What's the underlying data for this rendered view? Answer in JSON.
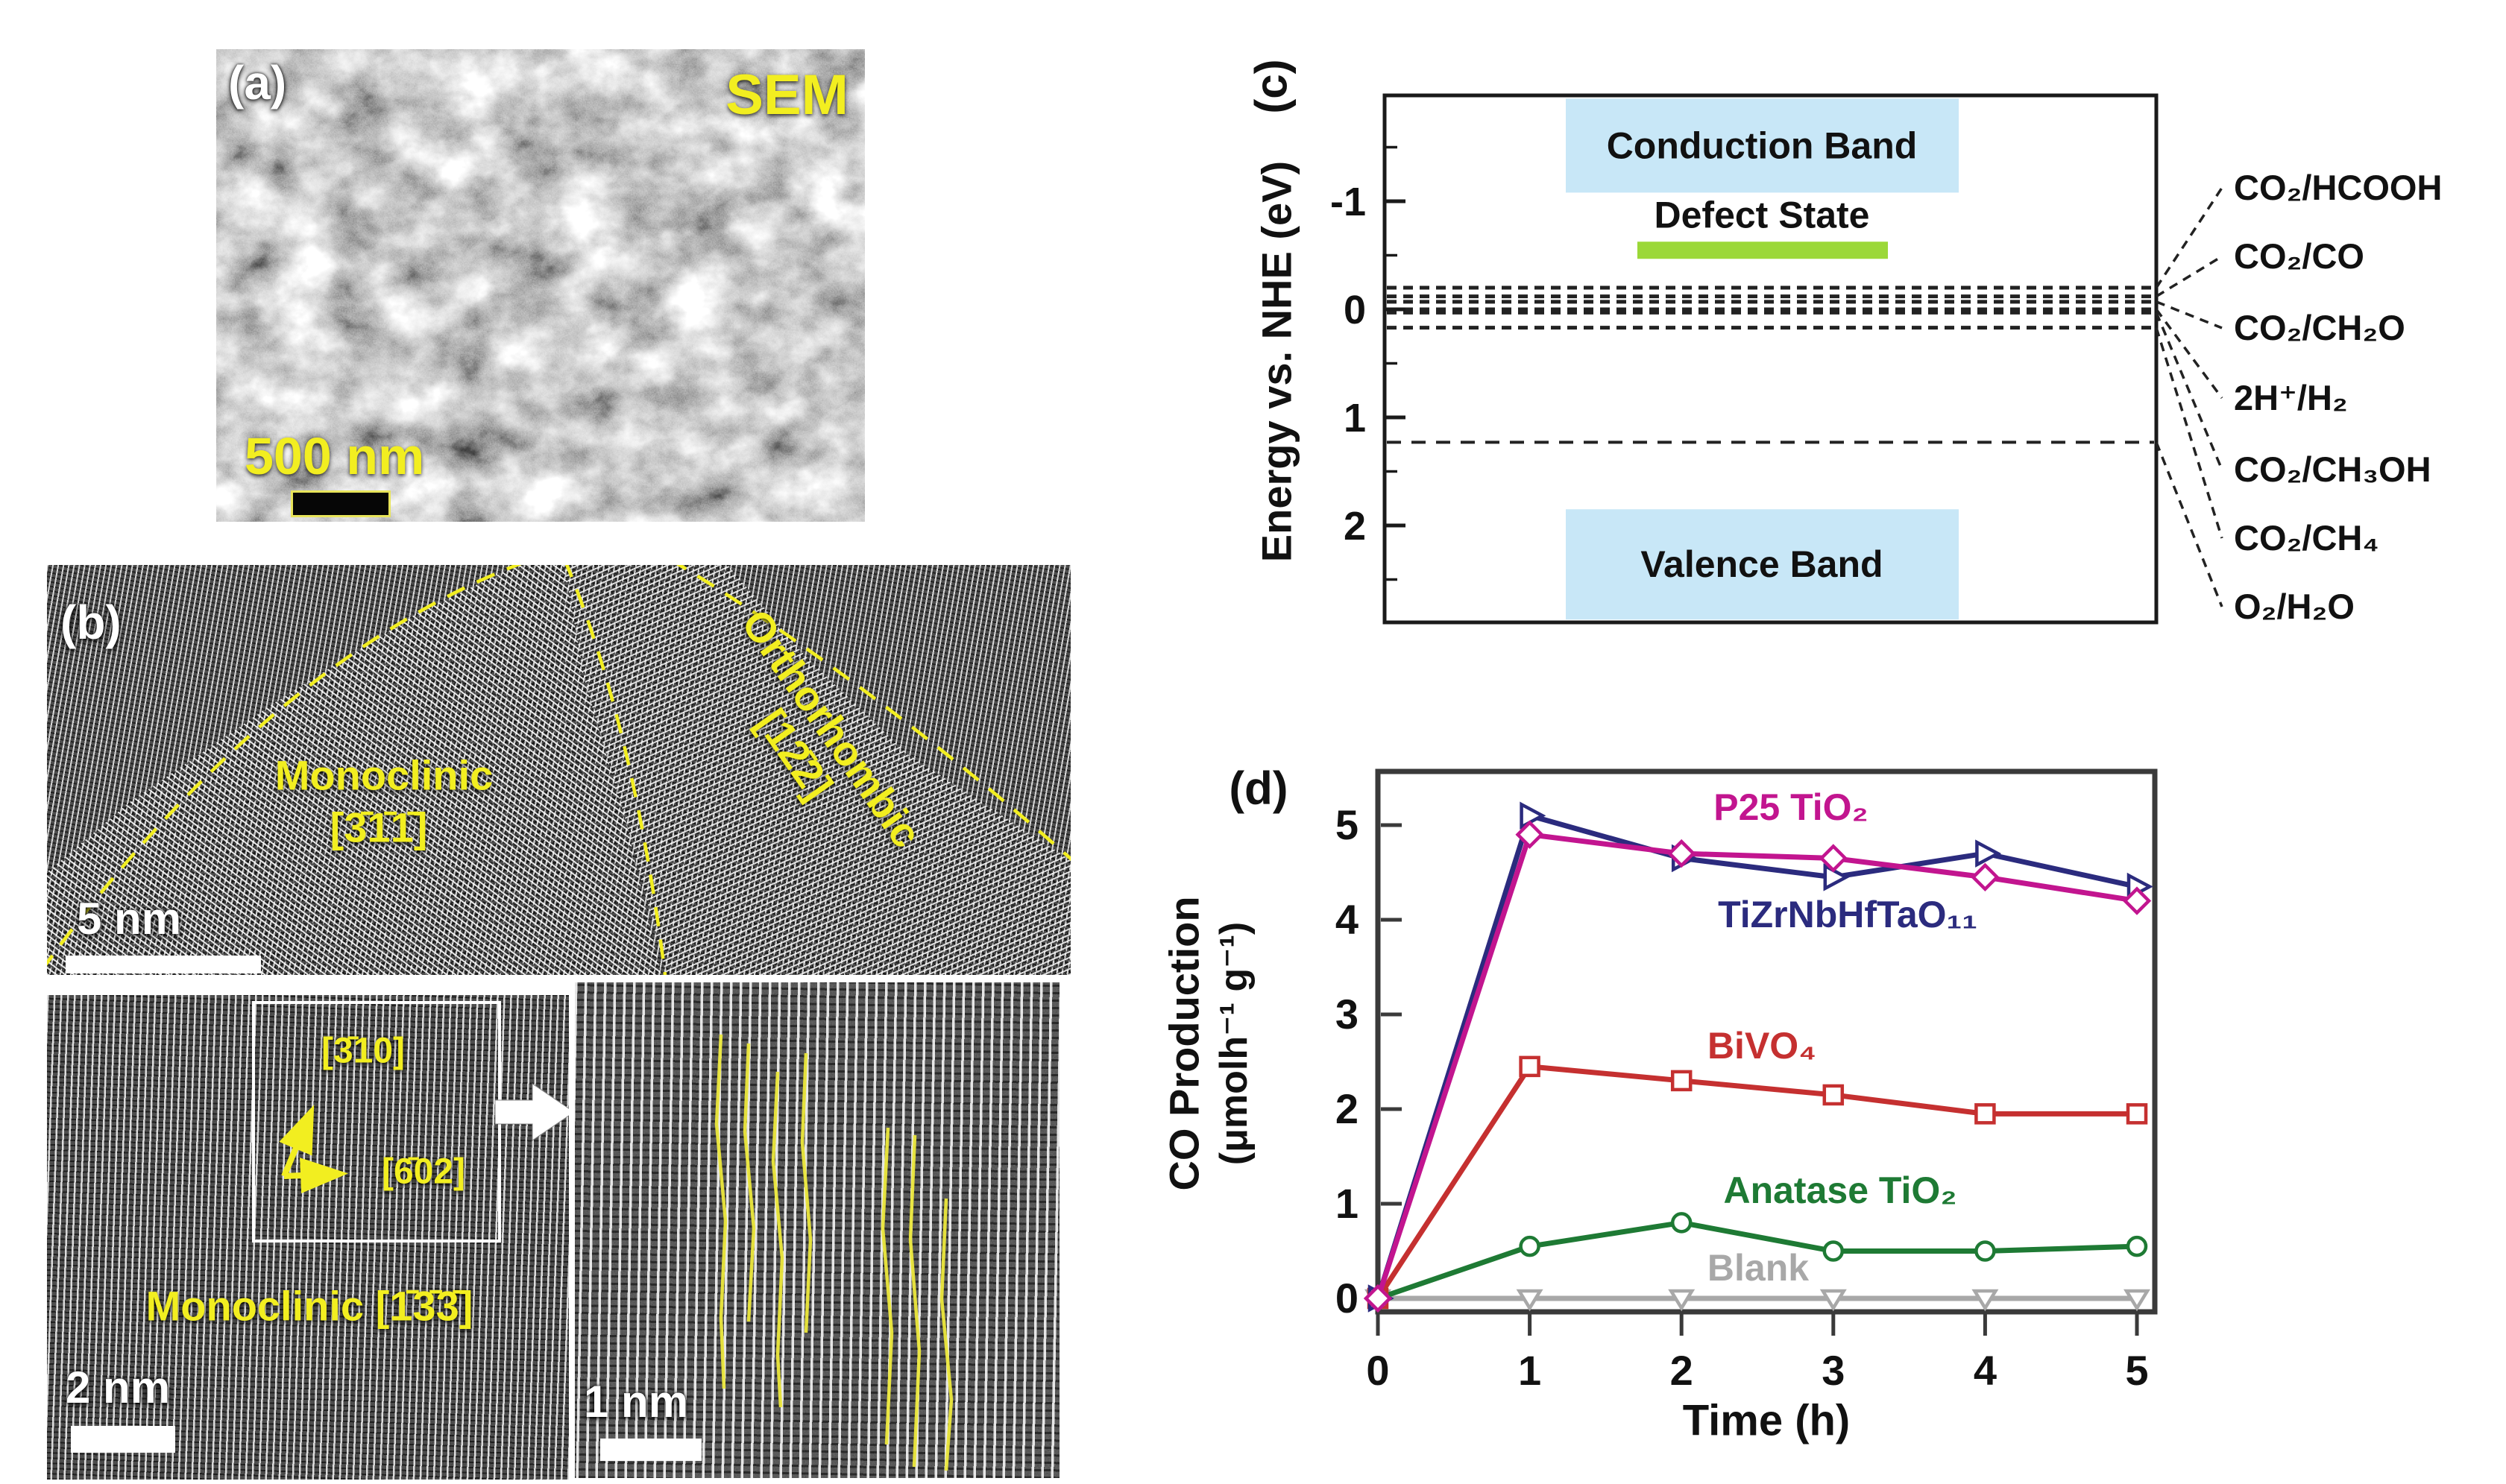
{
  "panels": {
    "a": {
      "label": "(a)",
      "technique": "SEM",
      "scale_bar_text": "500 nm"
    },
    "b": {
      "label": "(b)",
      "main": {
        "grain_left_line1": "Monoclinic",
        "grain_left_line2": "[3̄1̄1̄]",
        "grain_right_line1": "Orthorhombic",
        "grain_right_line2": "[12̄2]",
        "scale_bar_text": "5 nm"
      },
      "bottom_left": {
        "zone_label": "Monoclinic [1̄3̄3̄]",
        "axis_up_label": "[3̄10]",
        "axis_right_label": "[6̄02]",
        "scale_bar_text": "2 nm"
      },
      "inset": {
        "scale_bar_text": "1 nm"
      }
    },
    "c": {
      "label": "(c)",
      "y_axis_label": "Energy vs. NHE (eV)",
      "y_ticks": [
        -1,
        0,
        1,
        2
      ],
      "conduction_band": {
        "label": "Conduction Band",
        "from_eV": -1.95,
        "to_eV": -1.08,
        "color": "#c8e7f7"
      },
      "defect_state": {
        "label": "Defect State",
        "eV": -0.55,
        "color": "#9bd838"
      },
      "valence_band": {
        "label": "Valence Band",
        "from_eV": 1.85,
        "to_eV": 2.87,
        "color": "#c8e7f7"
      },
      "redox_levels": [
        {
          "label": "CO₂/HCOOH",
          "eV": -0.2
        },
        {
          "label": "CO₂/CO",
          "eV": -0.12
        },
        {
          "label": "CO₂/CH₂O",
          "eV": -0.07
        },
        {
          "label": "2H⁺/H₂",
          "eV": 0.0
        },
        {
          "label": "CO₂/CH₃OH",
          "eV": 0.03
        },
        {
          "label": "CO₂/CH₄",
          "eV": 0.17
        },
        {
          "label": "O₂/H₂O",
          "eV": 1.23
        }
      ]
    },
    "d": {
      "label": "(d)"
    }
  },
  "chart_data": {
    "type": "line",
    "title": "",
    "xlabel": "Time (h)",
    "ylabel_line1": "CO Production",
    "ylabel_line2": "(μmolh⁻¹ g⁻¹)",
    "x": [
      0,
      1,
      2,
      3,
      4,
      5
    ],
    "yticks": [
      0,
      1,
      2,
      3,
      4,
      5
    ],
    "xlim": [
      0,
      5.1
    ],
    "ylim": [
      0,
      5.6
    ],
    "grid": false,
    "legend_position": "inline-labels",
    "series": [
      {
        "name": "TiZrNbHfTaO₁₁",
        "color": "#2b2b7e",
        "marker": "triangle-right",
        "values": [
          0,
          5.1,
          4.65,
          4.45,
          4.7,
          4.35
        ]
      },
      {
        "name": "P25 TiO₂",
        "color": "#c2158f",
        "marker": "diamond",
        "values": [
          0,
          4.9,
          4.7,
          4.65,
          4.45,
          4.2
        ]
      },
      {
        "name": "BiVO₄",
        "color": "#c53030",
        "marker": "square",
        "values": [
          0,
          2.45,
          2.3,
          2.15,
          1.95,
          1.95
        ]
      },
      {
        "name": "Anatase TiO₂",
        "color": "#1e7a34",
        "marker": "circle",
        "values": [
          0,
          0.55,
          0.8,
          0.5,
          0.5,
          0.55
        ]
      },
      {
        "name": "Blank",
        "color": "#a8a8a8",
        "marker": "triangle-down",
        "values": [
          0,
          0,
          0,
          0,
          0,
          0
        ]
      }
    ]
  }
}
